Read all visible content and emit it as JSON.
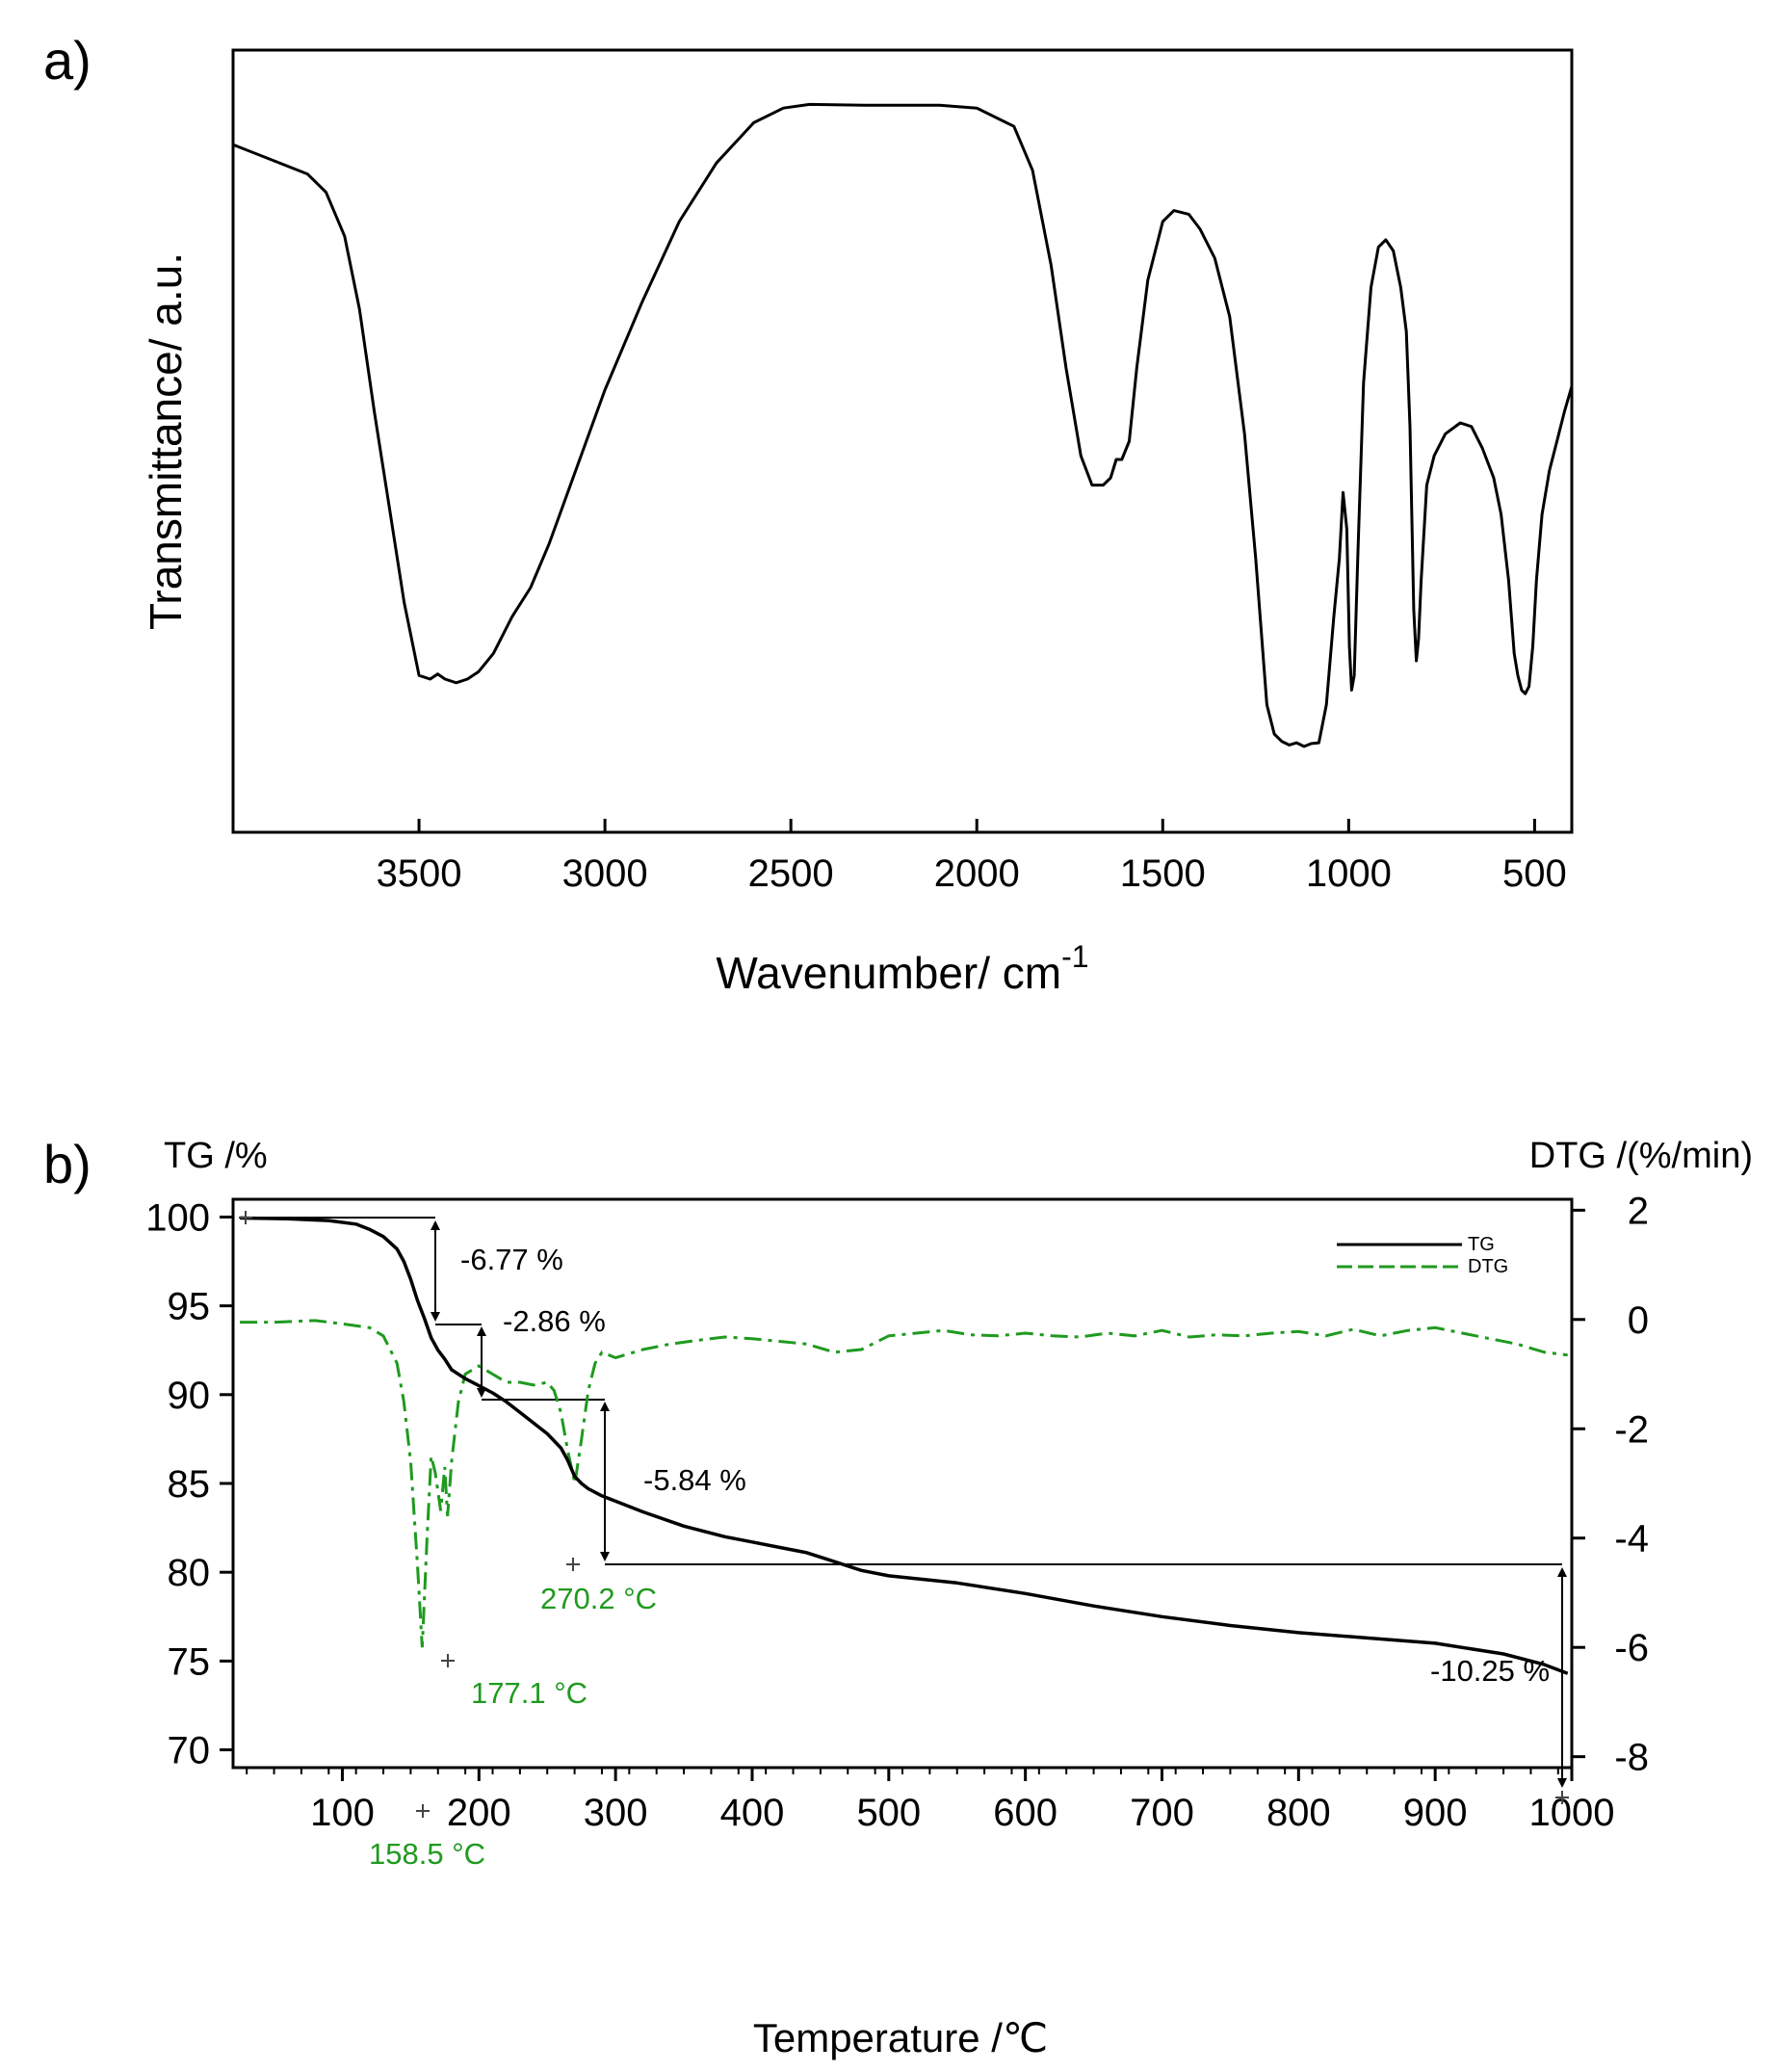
{
  "chart_data": [
    {
      "id": "a",
      "type": "line",
      "panel_label": "a)",
      "xlabel": "Wavenumber/ cm",
      "xlabel_sup": "-1",
      "ylabel": "Transmittance/ a.u.",
      "xlim": [
        4000,
        400
      ],
      "ylim": [
        0,
        100
      ],
      "xticks": [
        3500,
        3000,
        2500,
        2000,
        1500,
        1000,
        500
      ],
      "xtick_labels": [
        "3500",
        "3000",
        "2500",
        "2000",
        "1500",
        "1000",
        "500"
      ],
      "series": [
        {
          "name": "FTIR",
          "color": "#000000",
          "x": [
            4000,
            3900,
            3800,
            3750,
            3700,
            3660,
            3620,
            3580,
            3540,
            3500,
            3470,
            3450,
            3430,
            3400,
            3370,
            3340,
            3300,
            3250,
            3200,
            3150,
            3100,
            3000,
            2900,
            2800,
            2700,
            2600,
            2520,
            2450,
            2300,
            2100,
            2000,
            1900,
            1850,
            1800,
            1760,
            1720,
            1690,
            1660,
            1640,
            1625,
            1610,
            1590,
            1570,
            1540,
            1500,
            1470,
            1430,
            1400,
            1360,
            1320,
            1280,
            1250,
            1220,
            1200,
            1180,
            1160,
            1140,
            1120,
            1100,
            1080,
            1060,
            1040,
            1025,
            1015,
            1005,
            998,
            992,
            985,
            975,
            960,
            940,
            920,
            900,
            880,
            860,
            845,
            835,
            825,
            818,
            812,
            805,
            790,
            770,
            740,
            700,
            670,
            640,
            610,
            590,
            570,
            555,
            545,
            535,
            525,
            515,
            505,
            495,
            480,
            460,
            440,
            420,
            400
          ],
          "y": [
            90.5,
            88.5,
            86.5,
            84,
            78,
            68,
            54,
            41,
            28,
            18,
            17.5,
            18.2,
            17.5,
            17,
            17.5,
            18.5,
            21,
            26,
            30,
            36,
            43,
            57,
            69,
            80,
            88,
            93.5,
            95.5,
            96,
            95.9,
            95.9,
            95.5,
            93,
            87,
            74,
            60,
            48,
            44,
            44,
            45,
            47.5,
            47.5,
            50,
            60,
            72,
            80,
            81.5,
            81,
            79,
            75,
            67,
            51,
            34,
            14,
            10,
            9,
            8.5,
            8.8,
            8.3,
            8.7,
            8.8,
            14,
            26,
            34,
            43,
            38,
            22,
            16,
            18,
            35,
            58,
            71,
            76.5,
            77.5,
            76,
            71,
            65,
            52,
            27,
            20,
            23,
            31,
            44,
            48,
            51,
            52.5,
            52,
            49,
            45,
            40,
            31,
            21,
            18,
            16,
            15.5,
            16.5,
            22,
            31,
            40,
            46,
            50,
            54,
            57.5
          ]
        }
      ]
    },
    {
      "id": "b",
      "type": "line",
      "panel_label": "b)",
      "xlabel": "Temperature /℃",
      "ylabel_left": "TG /%",
      "ylabel_right": "DTG /(%/min)",
      "xlim": [
        20,
        1000
      ],
      "ylim_left": [
        69,
        101
      ],
      "ylim_right": [
        -8.2,
        2.2
      ],
      "xticks": [
        100,
        200,
        300,
        400,
        500,
        600,
        700,
        800,
        900,
        1000
      ],
      "xtick_labels": [
        "100",
        "200",
        "300",
        "400",
        "500",
        "600",
        "700",
        "800",
        "900",
        "1000"
      ],
      "yticks_left": [
        100,
        95,
        90,
        85,
        80,
        75,
        70
      ],
      "ytick_labels_left": [
        "100",
        "95",
        "90",
        "85",
        "80",
        "75",
        "70"
      ],
      "yticks_right": [
        2,
        0,
        -2,
        -4,
        -6,
        -8
      ],
      "ytick_labels_right": [
        "2",
        "0",
        "-2",
        "-4",
        "-6",
        "-8"
      ],
      "legend": [
        {
          "name": "TG",
          "color": "#000000",
          "style": "solid"
        },
        {
          "name": "DTG",
          "color": "#1f9a1f",
          "style": "dashed"
        }
      ],
      "series": [
        {
          "name": "TG",
          "axis": "left",
          "color": "#000000",
          "x": [
            25,
            60,
            90,
            110,
            120,
            130,
            140,
            145,
            150,
            155,
            160,
            165,
            170,
            175,
            180,
            190,
            200,
            210,
            220,
            230,
            240,
            250,
            260,
            265,
            270,
            275,
            280,
            290,
            300,
            320,
            350,
            380,
            400,
            420,
            440,
            460,
            480,
            500,
            550,
            600,
            650,
            700,
            750,
            800,
            850,
            900,
            950,
            980,
            997
          ],
          "y": [
            99.95,
            99.9,
            99.8,
            99.6,
            99.3,
            98.9,
            98.2,
            97.5,
            96.5,
            95.3,
            94.3,
            93.2,
            92.5,
            92.0,
            91.4,
            90.9,
            90.5,
            90.1,
            89.6,
            89.0,
            88.4,
            87.8,
            87.0,
            86.3,
            85.4,
            85.0,
            84.7,
            84.3,
            84.0,
            83.4,
            82.6,
            82.0,
            81.7,
            81.4,
            81.1,
            80.6,
            80.1,
            79.8,
            79.4,
            78.8,
            78.1,
            77.5,
            77.0,
            76.6,
            76.3,
            76.0,
            75.4,
            74.8,
            74.3
          ]
        },
        {
          "name": "DTG",
          "axis": "right",
          "color": "#1f9a1f",
          "x": [
            25,
            50,
            80,
            100,
            120,
            130,
            140,
            145,
            150,
            155,
            158.5,
            162,
            165,
            168,
            172,
            175,
            177,
            180,
            185,
            190,
            200,
            210,
            220,
            230,
            240,
            250,
            255,
            260,
            265,
            270.2,
            275,
            280,
            285,
            290,
            300,
            320,
            340,
            360,
            380,
            400,
            420,
            440,
            460,
            480,
            500,
            520,
            540,
            560,
            580,
            600,
            620,
            640,
            660,
            680,
            700,
            720,
            740,
            760,
            780,
            800,
            820,
            840,
            860,
            880,
            900,
            920,
            940,
            960,
            980,
            997
          ],
          "y": [
            -0.05,
            -0.05,
            -0.02,
            -0.08,
            -0.15,
            -0.3,
            -0.8,
            -1.5,
            -2.6,
            -4.5,
            -6.0,
            -4.0,
            -2.5,
            -2.8,
            -3.5,
            -2.7,
            -3.6,
            -2.6,
            -1.5,
            -1.0,
            -0.85,
            -1.0,
            -1.15,
            -1.15,
            -1.2,
            -1.15,
            -1.3,
            -1.7,
            -2.4,
            -3.0,
            -2.2,
            -1.3,
            -0.8,
            -0.6,
            -0.7,
            -0.55,
            -0.45,
            -0.38,
            -0.32,
            -0.35,
            -0.4,
            -0.45,
            -0.6,
            -0.55,
            -0.3,
            -0.25,
            -0.2,
            -0.28,
            -0.3,
            -0.25,
            -0.3,
            -0.32,
            -0.25,
            -0.3,
            -0.2,
            -0.32,
            -0.28,
            -0.3,
            -0.25,
            -0.22,
            -0.3,
            -0.18,
            -0.3,
            -0.2,
            -0.15,
            -0.25,
            -0.35,
            -0.45,
            -0.6,
            -0.65
          ]
        }
      ],
      "annotations": {
        "mass_losses": [
          "-6.77 %",
          "-2.86 %",
          "-5.84 %",
          "-10.25 %"
        ],
        "peaks": [
          "158.5 °C",
          "177.1 °C",
          "270.2 °C"
        ]
      }
    }
  ]
}
